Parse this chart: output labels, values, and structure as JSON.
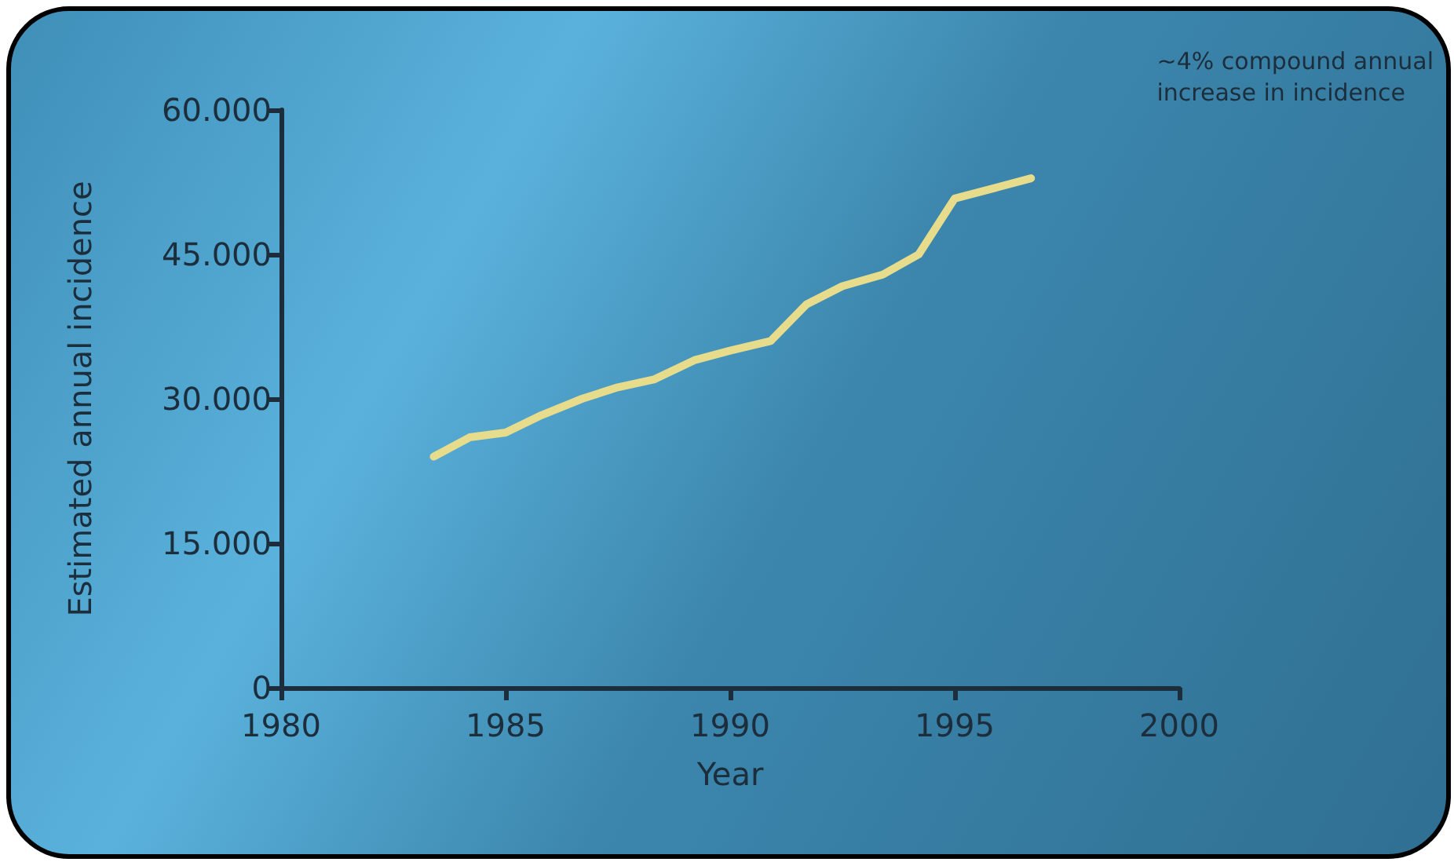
{
  "chart_data": {
    "type": "line",
    "xlabel": "Year",
    "ylabel": "Estimated annual incidence",
    "annotations": [
      "~4% compound annual\nincrease in incidence"
    ],
    "x": [
      1983.4,
      1984.2,
      1985.0,
      1985.8,
      1986.7,
      1987.5,
      1988.3,
      1989.2,
      1990.0,
      1990.9,
      1991.7,
      1992.5,
      1993.4,
      1994.2,
      1995.0,
      1995.9,
      1996.7
    ],
    "series": [
      {
        "color": "#e6dc8c",
        "values": [
          24000,
          26000,
          26500,
          28300,
          30000,
          31200,
          32000,
          34000,
          35000,
          36000,
          39800,
          41700,
          42900,
          45000,
          50800,
          51900,
          52900
        ]
      }
    ],
    "xlim": [
      1980,
      2000
    ],
    "xticks": [
      1980,
      1985,
      1990,
      1995,
      2000
    ],
    "ylim": [
      0,
      60000
    ],
    "yticks": [
      0,
      {
        "value": 15000,
        "label": "15.000"
      },
      {
        "value": 30000,
        "label": "30.000"
      },
      {
        "value": 45000,
        "label": "45.000"
      },
      {
        "value": 60000,
        "label": "60.000"
      }
    ],
    "marker": "none",
    "line_style": "solid"
  }
}
